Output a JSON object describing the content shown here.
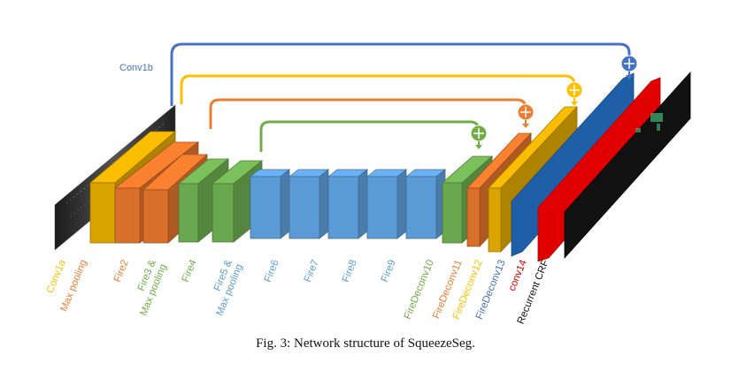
{
  "figure": {
    "caption": "Fig. 3: Network structure of SqueezeSeg."
  },
  "colors": {
    "input": "#2b2b2b",
    "conv1a": "#d9a400",
    "maxpool": "#d9702a",
    "fire_green": "#6aa84f",
    "fire_blue": "#5b9bd5",
    "deconv_blue": "#1f5fa8",
    "crf_red": "#e00000",
    "output": "#111111",
    "skip_blue": "#4472c4",
    "skip_yellow": "#ffc000",
    "skip_orange": "#ed7d31",
    "skip_green": "#70ad47"
  },
  "skip_labels": {
    "conv1b": "Conv1b"
  },
  "layers": [
    {
      "key": "conv1a",
      "label": "Conv1a",
      "label_color": "#ffc000"
    },
    {
      "key": "maxpool1",
      "label": "Max pooling",
      "label_color": "#ed7d31"
    },
    {
      "key": "fire2",
      "label": "Fire2",
      "label_color": "#ed7d31"
    },
    {
      "key": "fire3",
      "label": "Fire3 &\nMax pooling",
      "label_color": "#70ad47"
    },
    {
      "key": "fire4",
      "label": "Fire4",
      "label_color": "#70ad47"
    },
    {
      "key": "fire5",
      "label": "Fire5 &\nMax pooling",
      "label_color": "#5b9bd5"
    },
    {
      "key": "fire6",
      "label": "Fire6",
      "label_color": "#5b9bd5"
    },
    {
      "key": "fire7",
      "label": "Fire7",
      "label_color": "#5b9bd5"
    },
    {
      "key": "fire8",
      "label": "Fire8",
      "label_color": "#5b9bd5"
    },
    {
      "key": "fire9",
      "label": "Fire9",
      "label_color": "#5b9bd5"
    },
    {
      "key": "firedeconv10",
      "label": "FireDeconv10",
      "label_color": "#70ad47"
    },
    {
      "key": "firedeconv11",
      "label": "FireDeconv11",
      "label_color": "#ed7d31"
    },
    {
      "key": "firedeconv12",
      "label": "FireDeconv12",
      "label_color": "#ffc000"
    },
    {
      "key": "firedeconv13",
      "label": "FireDeconv13",
      "label_color": "#4472c4"
    },
    {
      "key": "conv14",
      "label": "conv14",
      "label_color": "#e00000"
    },
    {
      "key": "recurrent_crf",
      "label": "Recurrent CRF",
      "label_color": "#111111"
    }
  ]
}
